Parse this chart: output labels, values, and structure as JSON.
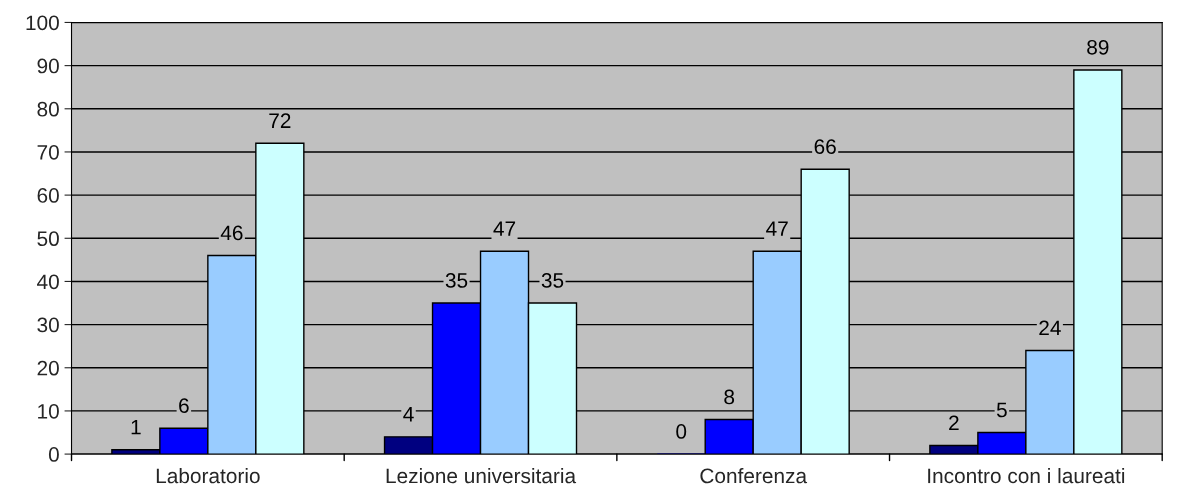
{
  "chart_data": {
    "type": "bar",
    "categories": [
      "Laboratorio",
      "Lezione universitaria",
      "Conferenza",
      "Incontro con i laureati"
    ],
    "series": [
      {
        "color": "#000080",
        "values": [
          1,
          4,
          0,
          2
        ]
      },
      {
        "color": "#0000ff",
        "values": [
          6,
          35,
          8,
          5
        ]
      },
      {
        "color": "#99ccff",
        "values": [
          46,
          47,
          47,
          24
        ]
      },
      {
        "color": "#ccffff",
        "values": [
          72,
          35,
          66,
          89
        ]
      }
    ],
    "ylim": [
      0,
      100
    ],
    "yticks": [
      0,
      10,
      20,
      30,
      40,
      50,
      60,
      70,
      80,
      90,
      100
    ],
    "grid": "y",
    "data_labels": true,
    "legend": false
  }
}
